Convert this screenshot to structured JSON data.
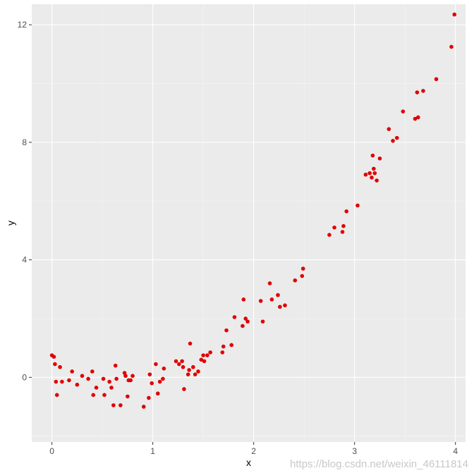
{
  "chart_data": {
    "type": "scatter",
    "title": "",
    "xlabel": "x",
    "ylabel": "y",
    "xlim": [
      -0.2,
      4.1
    ],
    "ylim": [
      -2.2,
      12.7
    ],
    "xticks": [
      0,
      1,
      2,
      3,
      4
    ],
    "xtick_labels": [
      "0",
      "1",
      "2",
      "3",
      "4"
    ],
    "yticks": [
      0,
      4,
      8,
      12
    ],
    "ytick_labels": [
      "0",
      "4",
      "8",
      "12"
    ],
    "grid": true,
    "legend": "none",
    "colors": {
      "panel": "#ebebeb",
      "grid_major": "#ffffff",
      "grid_minor": "#f5f5f5",
      "point": "#e00000"
    },
    "x": [
      0.0,
      0.02,
      0.03,
      0.04,
      0.05,
      0.08,
      0.1,
      0.17,
      0.2,
      0.25,
      0.3,
      0.36,
      0.4,
      0.41,
      0.44,
      0.51,
      0.52,
      0.57,
      0.59,
      0.61,
      0.63,
      0.64,
      0.68,
      0.72,
      0.73,
      0.75,
      0.76,
      0.78,
      0.8,
      0.91,
      0.96,
      0.97,
      0.99,
      1.03,
      1.05,
      1.07,
      1.1,
      1.11,
      1.23,
      1.26,
      1.29,
      1.3,
      1.31,
      1.35,
      1.36,
      1.37,
      1.4,
      1.42,
      1.45,
      1.48,
      1.5,
      1.51,
      1.54,
      1.57,
      1.69,
      1.7,
      1.73,
      1.78,
      1.81,
      1.89,
      1.9,
      1.92,
      1.94,
      2.07,
      2.09,
      2.16,
      2.18,
      2.24,
      2.26,
      2.31,
      2.41,
      2.48,
      2.49,
      2.75,
      2.8,
      2.88,
      2.89,
      2.92,
      3.03,
      3.11,
      3.15,
      3.17,
      3.18,
      3.19,
      3.2,
      3.22,
      3.25,
      3.34,
      3.38,
      3.42,
      3.48,
      3.6,
      3.62,
      3.63,
      3.68,
      3.81,
      3.96,
      3.99
    ],
    "y": [
      0.75,
      0.7,
      0.45,
      -0.15,
      -0.6,
      0.35,
      -0.15,
      -0.1,
      0.2,
      -0.25,
      0.05,
      -0.05,
      0.2,
      -0.6,
      -0.35,
      -0.05,
      -0.6,
      -0.15,
      -0.35,
      -0.95,
      0.4,
      -0.05,
      -0.95,
      0.15,
      0.05,
      -0.65,
      -0.1,
      -0.1,
      0.05,
      -1.0,
      -0.7,
      0.1,
      -0.2,
      0.45,
      -0.55,
      -0.15,
      -0.05,
      0.3,
      0.55,
      0.45,
      0.55,
      0.35,
      -0.4,
      0.1,
      0.25,
      1.15,
      0.35,
      0.1,
      0.2,
      0.6,
      0.75,
      0.55,
      0.75,
      0.85,
      0.85,
      1.05,
      1.6,
      1.1,
      2.05,
      1.75,
      2.65,
      2.0,
      1.9,
      2.6,
      1.9,
      3.2,
      2.65,
      2.8,
      2.4,
      2.45,
      3.3,
      3.45,
      3.7,
      4.85,
      5.1,
      4.95,
      5.15,
      5.65,
      5.85,
      6.9,
      6.95,
      6.8,
      7.55,
      7.1,
      6.95,
      6.7,
      7.45,
      8.45,
      8.05,
      8.15,
      9.05,
      8.8,
      9.7,
      8.85,
      9.75,
      10.15,
      11.25,
      12.35
    ]
  },
  "watermark": "https://blog.csdn.net/weixin_46111814"
}
